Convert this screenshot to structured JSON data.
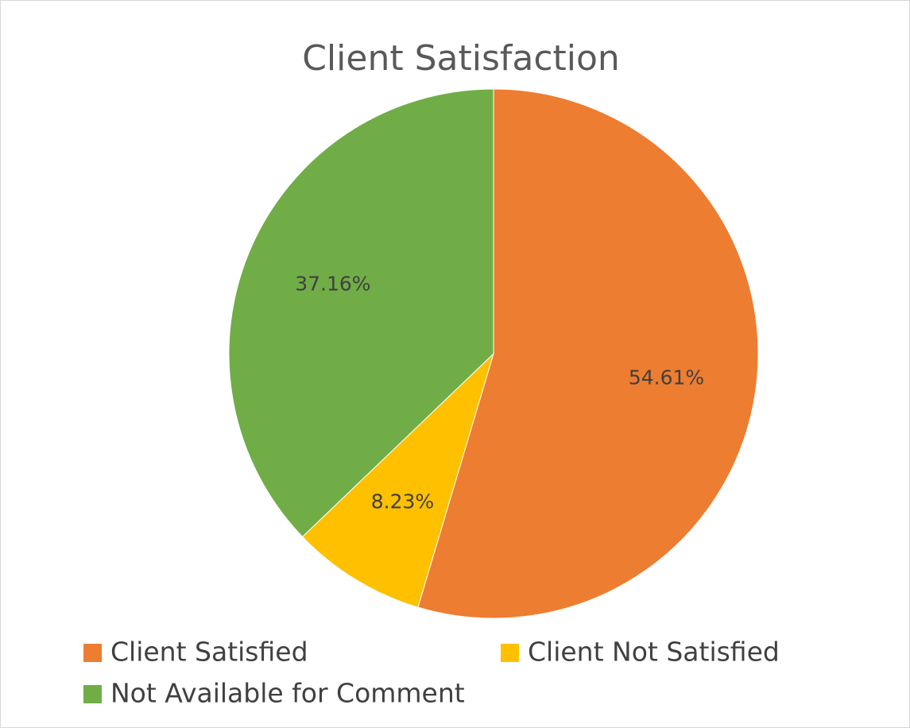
{
  "chart_data": {
    "type": "pie",
    "title": "Client Satisfaction",
    "categories": [
      "Client Satisfied",
      "Client Not Satisfied",
      "Not Available for Comment"
    ],
    "values": [
      54.61,
      8.23,
      37.16
    ],
    "value_labels": [
      "54.61%",
      "8.23%",
      "37.16%"
    ],
    "colors": [
      "#ed7d31",
      "#ffc000",
      "#70ad47"
    ],
    "legend": "bottom"
  }
}
